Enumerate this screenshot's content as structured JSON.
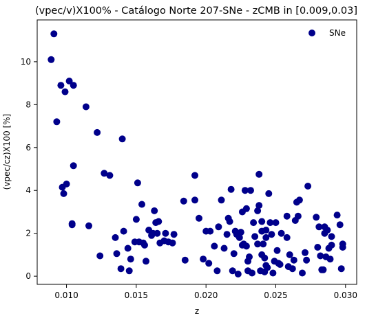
{
  "chart_data": {
    "type": "scatter",
    "title": "(vpec/v)X100% - Catálogo Norte 207-SNe -  zCMB in [0.009,0.03]",
    "xlabel": "z",
    "ylabel": "(vpec/cz)X100 [%]",
    "xlim": [
      0.0079,
      0.0308
    ],
    "ylim": [
      -0.38,
      11.95
    ],
    "xticks": [
      0.01,
      0.015,
      0.02,
      0.025,
      0.03
    ],
    "xtick_labels": [
      "0.010",
      "0.015",
      "0.020",
      "0.025",
      "0.030"
    ],
    "yticks": [
      0,
      2,
      4,
      6,
      8,
      10
    ],
    "ytick_labels": [
      "0",
      "2",
      "4",
      "6",
      "8",
      "10"
    ],
    "grid": false,
    "legend_position": "top-right",
    "marker_color": "#00008b",
    "series": [
      {
        "name": "SNe",
        "points": [
          [
            0.0089,
            10.1
          ],
          [
            0.0091,
            11.3
          ],
          [
            0.0093,
            7.2
          ],
          [
            0.0096,
            8.9
          ],
          [
            0.0097,
            4.15
          ],
          [
            0.0098,
            3.85
          ],
          [
            0.0099,
            8.6
          ],
          [
            0.01,
            4.3
          ],
          [
            0.0102,
            9.1
          ],
          [
            0.0104,
            2.45
          ],
          [
            0.0104,
            2.4
          ],
          [
            0.0105,
            8.9
          ],
          [
            0.0105,
            5.15
          ],
          [
            0.0114,
            7.9
          ],
          [
            0.0116,
            2.35
          ],
          [
            0.0122,
            6.7
          ],
          [
            0.0124,
            0.95
          ],
          [
            0.0127,
            4.8
          ],
          [
            0.0131,
            4.7
          ],
          [
            0.0135,
            1.8
          ],
          [
            0.0136,
            1.05
          ],
          [
            0.0139,
            0.35
          ],
          [
            0.014,
            6.4
          ],
          [
            0.0141,
            2.1
          ],
          [
            0.0144,
            1.3
          ],
          [
            0.0145,
            0.25
          ],
          [
            0.0146,
            0.8
          ],
          [
            0.0149,
            1.6
          ],
          [
            0.015,
            2.65
          ],
          [
            0.0151,
            4.35
          ],
          [
            0.0152,
            1.6
          ],
          [
            0.0154,
            3.35
          ],
          [
            0.0155,
            1.55
          ],
          [
            0.0156,
            1.45
          ],
          [
            0.0157,
            0.7
          ],
          [
            0.0159,
            2.15
          ],
          [
            0.0161,
            1.9
          ],
          [
            0.0162,
            2.0
          ],
          [
            0.0163,
            3.05
          ],
          [
            0.0164,
            2.5
          ],
          [
            0.0165,
            2.0
          ],
          [
            0.0166,
            2.55
          ],
          [
            0.0167,
            1.55
          ],
          [
            0.017,
            1.65
          ],
          [
            0.0171,
            2.0
          ],
          [
            0.0173,
            1.6
          ],
          [
            0.0176,
            1.55
          ],
          [
            0.0177,
            1.95
          ],
          [
            0.0184,
            3.5
          ],
          [
            0.0185,
            0.75
          ],
          [
            0.0192,
            3.55
          ],
          [
            0.0192,
            4.7
          ],
          [
            0.0195,
            2.7
          ],
          [
            0.0198,
            0.8
          ],
          [
            0.02,
            2.1
          ],
          [
            0.0202,
            0.6
          ],
          [
            0.0203,
            2.1
          ],
          [
            0.0206,
            1.4
          ],
          [
            0.0208,
            0.25
          ],
          [
            0.0209,
            2.3
          ],
          [
            0.0211,
            3.55
          ],
          [
            0.0213,
            1.3
          ],
          [
            0.0215,
            1.95
          ],
          [
            0.0216,
            2.7
          ],
          [
            0.0217,
            2.55
          ],
          [
            0.0218,
            4.05
          ],
          [
            0.0219,
            0.25
          ],
          [
            0.022,
            1.05
          ],
          [
            0.0221,
            2.1
          ],
          [
            0.0222,
            1.95
          ],
          [
            0.0223,
            0.1
          ],
          [
            0.0224,
            1.8
          ],
          [
            0.0225,
            2.05
          ],
          [
            0.0226,
            3.0
          ],
          [
            0.0226,
            1.45
          ],
          [
            0.0227,
            1.5
          ],
          [
            0.0228,
            4.0
          ],
          [
            0.0229,
            1.4
          ],
          [
            0.0229,
            3.15
          ],
          [
            0.023,
            0.25
          ],
          [
            0.023,
            0.7
          ],
          [
            0.0231,
            0.9
          ],
          [
            0.0232,
            4.0
          ],
          [
            0.0233,
            0.15
          ],
          [
            0.0234,
            2.5
          ],
          [
            0.0235,
            1.85
          ],
          [
            0.0237,
            1.5
          ],
          [
            0.0237,
            3.05
          ],
          [
            0.0238,
            3.3
          ],
          [
            0.0238,
            4.75
          ],
          [
            0.0239,
            0.25
          ],
          [
            0.024,
            1.0
          ],
          [
            0.024,
            2.55
          ],
          [
            0.024,
            2.1
          ],
          [
            0.0241,
            1.5
          ],
          [
            0.0242,
            0.85
          ],
          [
            0.0242,
            0.2
          ],
          [
            0.0243,
            0.5
          ],
          [
            0.0243,
            2.15
          ],
          [
            0.0243,
            1.8
          ],
          [
            0.0244,
            0.4
          ],
          [
            0.0245,
            3.85
          ],
          [
            0.0246,
            2.5
          ],
          [
            0.0247,
            1.95
          ],
          [
            0.0248,
            0.15
          ],
          [
            0.0249,
            0.7
          ],
          [
            0.025,
            2.5
          ],
          [
            0.0251,
            1.2
          ],
          [
            0.0252,
            0.6
          ],
          [
            0.0253,
            0.55
          ],
          [
            0.0254,
            2.0
          ],
          [
            0.0258,
            2.8
          ],
          [
            0.0258,
            1.8
          ],
          [
            0.0259,
            0.45
          ],
          [
            0.026,
            1.0
          ],
          [
            0.0262,
            0.35
          ],
          [
            0.0263,
            0.75
          ],
          [
            0.0264,
            2.6
          ],
          [
            0.0265,
            3.45
          ],
          [
            0.0266,
            2.8
          ],
          [
            0.0267,
            3.55
          ],
          [
            0.0269,
            0.15
          ],
          [
            0.0271,
            1.1
          ],
          [
            0.0272,
            0.75
          ],
          [
            0.0273,
            4.2
          ],
          [
            0.0279,
            2.75
          ],
          [
            0.028,
            1.35
          ],
          [
            0.0281,
            2.3
          ],
          [
            0.0282,
            0.95
          ],
          [
            0.0283,
            0.3
          ],
          [
            0.0284,
            0.3
          ],
          [
            0.0285,
            2.0
          ],
          [
            0.0285,
            2.3
          ],
          [
            0.0286,
            0.9
          ],
          [
            0.0287,
            2.15
          ],
          [
            0.0288,
            1.3
          ],
          [
            0.0289,
            0.8
          ],
          [
            0.029,
            1.85
          ],
          [
            0.029,
            1.45
          ],
          [
            0.0294,
            2.85
          ],
          [
            0.0296,
            2.4
          ],
          [
            0.0297,
            0.35
          ],
          [
            0.0298,
            1.5
          ],
          [
            0.0298,
            1.35
          ]
        ]
      }
    ]
  }
}
